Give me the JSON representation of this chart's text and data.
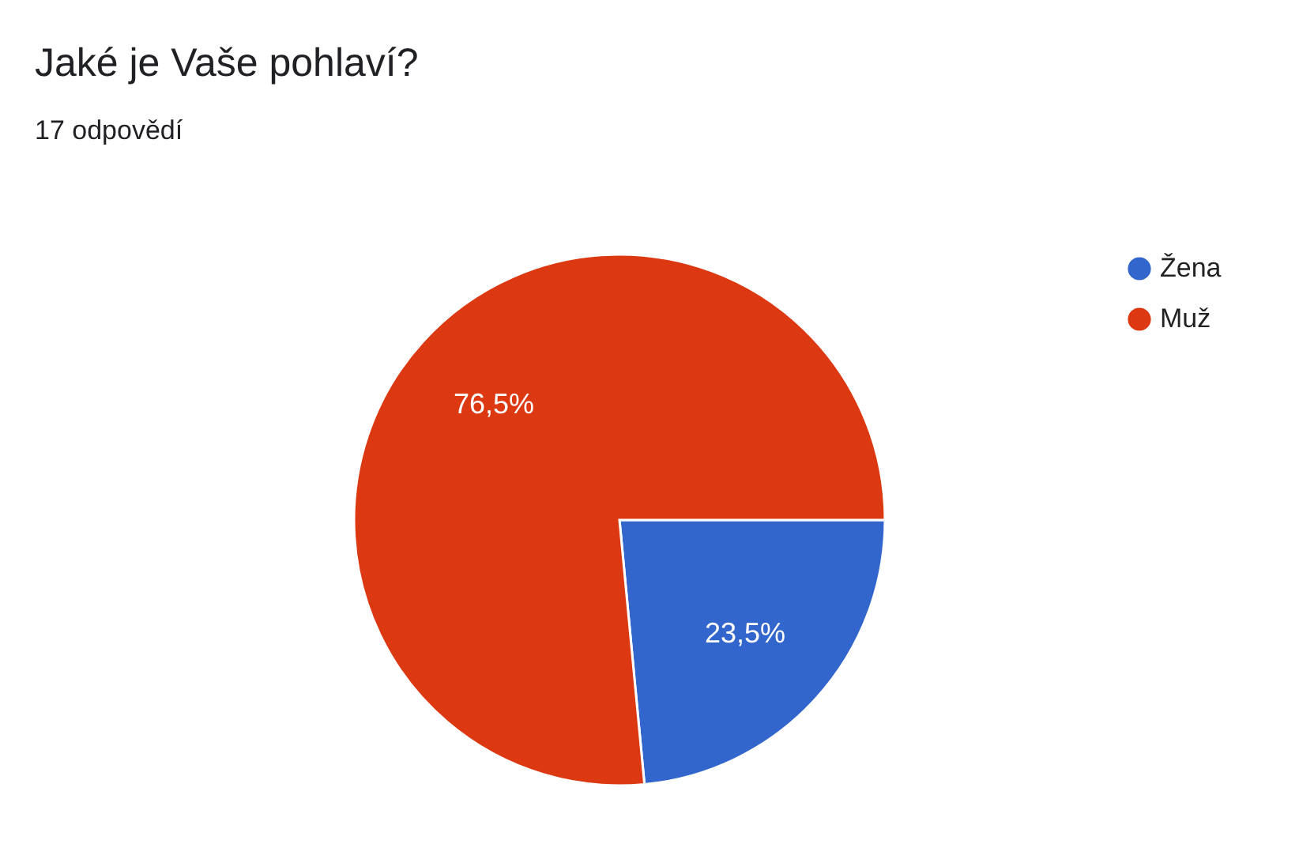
{
  "chart_data": {
    "type": "pie",
    "title": "Jaké je Vaše pohlaví?",
    "subtitle": "17 odpovědí",
    "categories": [
      "Žena",
      "Muž"
    ],
    "values": [
      23.5,
      76.5
    ],
    "colors": [
      "#3366cc",
      "#dc3912"
    ],
    "value_labels": [
      "23,5%",
      "76,5%"
    ],
    "legend": "right"
  }
}
